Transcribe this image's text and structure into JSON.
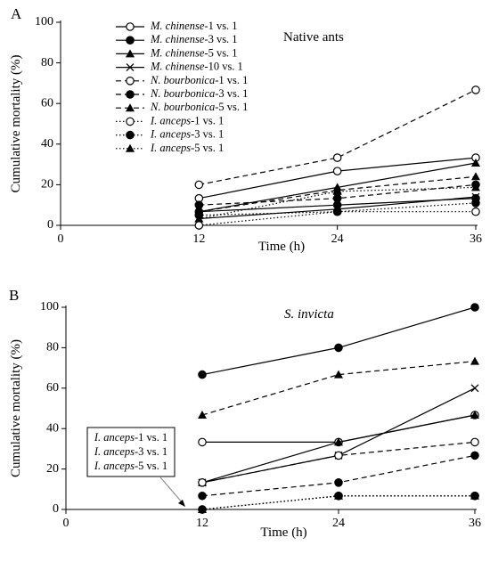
{
  "chart_data": [
    {
      "panel_label": "A",
      "type": "line",
      "annotation": "Native ants",
      "xlabel": "Time (h)",
      "ylabel": "Cumulative mortality (%)",
      "xlim": [
        0,
        36
      ],
      "ylim": [
        0,
        100
      ],
      "xticks": [
        0,
        12,
        24,
        36
      ],
      "yticks": [
        0,
        20,
        40,
        60,
        80,
        100
      ],
      "legend_position": "top-left",
      "x": [
        12,
        24,
        36
      ],
      "series": [
        {
          "name": "M. chinense-1 vs. 1",
          "italic": "M. chinense",
          "suffix": "-1 vs. 1",
          "line": "solid",
          "marker": "circle-open",
          "values": [
            13.3,
            26.7,
            33.3
          ]
        },
        {
          "name": "M. chinense-3 vs. 1",
          "italic": "M. chinense",
          "suffix": "-3 vs. 1",
          "line": "solid",
          "marker": "circle-filled",
          "values": [
            6.7,
            10.0,
            13.3
          ]
        },
        {
          "name": "M. chinense-5 vs. 1",
          "italic": "M. chinense",
          "suffix": "-5 vs. 1",
          "line": "solid",
          "marker": "triangle-filled",
          "values": [
            6.7,
            18.7,
            30.7
          ]
        },
        {
          "name": "M. chinense-10 vs. 1",
          "italic": "M. chinense",
          "suffix": "-10 vs. 1",
          "line": "solid",
          "marker": "x",
          "values": [
            3.3,
            8.0,
            14.0
          ]
        },
        {
          "name": "N. bourbonica-1 vs. 1",
          "italic": "N. bourbonica",
          "suffix": "-1 vs. 1",
          "line": "dashed",
          "marker": "circle-open",
          "values": [
            20.0,
            33.3,
            66.7
          ]
        },
        {
          "name": "N. bourbonica-3 vs. 1",
          "italic": "N. bourbonica",
          "suffix": "-3 vs. 1",
          "line": "dashed",
          "marker": "circle-filled",
          "values": [
            10.0,
            13.3,
            20.0
          ]
        },
        {
          "name": "N. bourbonica-5 vs. 1",
          "italic": "N. bourbonica",
          "suffix": "-5 vs. 1",
          "line": "dashed",
          "marker": "triangle-filled",
          "values": [
            6.7,
            17.3,
            24.0
          ]
        },
        {
          "name": "I. anceps-1 vs. 1",
          "italic": "I. anceps",
          "suffix": "-1 vs. 1",
          "line": "dotted",
          "marker": "circle-open",
          "values": [
            0.0,
            6.7,
            6.7
          ]
        },
        {
          "name": "I. anceps-3 vs. 1",
          "italic": "I. anceps",
          "suffix": "-3 vs. 1",
          "line": "dotted",
          "marker": "circle-filled",
          "values": [
            5.0,
            6.7,
            11.0
          ]
        },
        {
          "name": "I. anceps-5 vs. 1",
          "italic": "I. anceps",
          "suffix": "-5 vs. 1",
          "line": "dotted",
          "marker": "triangle-filled",
          "values": [
            3.3,
            16.7,
            18.7
          ]
        }
      ]
    },
    {
      "panel_label": "B",
      "type": "line",
      "annotation": "S. invicta",
      "xlabel": "Time (h)",
      "ylabel": "Cumulative mortality (%)",
      "xlim": [
        0,
        36
      ],
      "ylim": [
        0,
        100
      ],
      "xticks": [
        0,
        12,
        24,
        36
      ],
      "yticks": [
        0,
        20,
        40,
        60,
        80,
        100
      ],
      "callout_lines": [
        {
          "italic": "I. anceps",
          "suffix": "-1 vs. 1"
        },
        {
          "italic": "I. anceps",
          "suffix": "-3 vs. 1"
        },
        {
          "italic": "I. anceps",
          "suffix": "-5 vs. 1"
        }
      ],
      "x": [
        12,
        24,
        36
      ],
      "series": [
        {
          "name": "M. chinense-1 vs. 1",
          "line": "solid",
          "marker": "circle-open",
          "values": [
            33.3,
            33.3,
            46.7
          ]
        },
        {
          "name": "M. chinense-3 vs. 1",
          "line": "solid",
          "marker": "circle-filled",
          "values": [
            66.7,
            80.0,
            100.0
          ]
        },
        {
          "name": "M. chinense-5 vs. 1",
          "line": "solid",
          "marker": "triangle-filled",
          "values": [
            13.3,
            33.3,
            46.7
          ]
        },
        {
          "name": "M. chinense-10 vs. 1",
          "line": "solid",
          "marker": "x",
          "values": [
            13.3,
            26.7,
            60.0
          ]
        },
        {
          "name": "N. bourbonica-1 vs. 1",
          "line": "dashed",
          "marker": "circle-open",
          "values": [
            13.3,
            26.7,
            33.3
          ]
        },
        {
          "name": "N. bourbonica-3 vs. 1",
          "line": "dashed",
          "marker": "circle-filled",
          "values": [
            6.7,
            13.3,
            26.7
          ]
        },
        {
          "name": "N. bourbonica-5 vs. 1",
          "line": "dashed",
          "marker": "triangle-filled",
          "values": [
            46.7,
            66.7,
            73.3
          ]
        },
        {
          "name": "I. anceps-1 vs. 1",
          "line": "dotted",
          "marker": "circle-open",
          "values": [
            0.0,
            6.7,
            6.7
          ]
        },
        {
          "name": "I. anceps-3 vs. 1",
          "line": "dotted",
          "marker": "circle-filled",
          "values": [
            0.0,
            6.7,
            6.7
          ]
        },
        {
          "name": "I. anceps-5 vs. 1",
          "line": "dotted",
          "marker": "triangle-filled",
          "values": [
            0.0,
            6.7,
            6.7
          ]
        }
      ]
    }
  ]
}
